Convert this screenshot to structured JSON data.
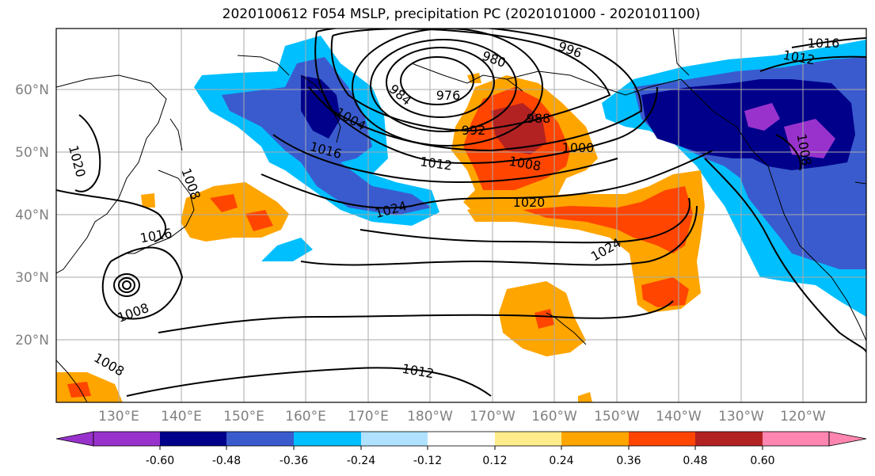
{
  "title": "2020100612 F054 MSLP, precipitation PC (2020101000 - 2020101100)",
  "lat_labels": [
    "60°N",
    "50°N",
    "40°N",
    "30°N",
    "20°N"
  ],
  "lon_labels": [
    "130°E",
    "140°E",
    "150°E",
    "160°E",
    "170°E",
    "180°W",
    "170°W",
    "160°W",
    "150°W",
    "140°W",
    "130°W",
    "120°W"
  ],
  "contour_labels": [
    "976",
    "980",
    "984",
    "988",
    "992",
    "996",
    "1000",
    "1004",
    "1008",
    "1012",
    "1016",
    "1020",
    "1024"
  ],
  "colorbar": {
    "colors": [
      "#9932cc",
      "#00008b",
      "#3a5bcd",
      "#00bfff",
      "#b0e2ff",
      "#ffffff",
      "#ffec8b",
      "#ffa500",
      "#ff4500",
      "#b22222",
      "#ff86b0"
    ],
    "tick_labels": [
      "-0.60",
      "-0.48",
      "-0.36",
      "-0.24",
      "-0.12",
      "0.12",
      "0.24",
      "0.36",
      "0.48",
      "0.60"
    ]
  },
  "colors": {
    "gridline": "#aaaaaa",
    "tick_label": "#808080",
    "contour": "#000000"
  }
}
